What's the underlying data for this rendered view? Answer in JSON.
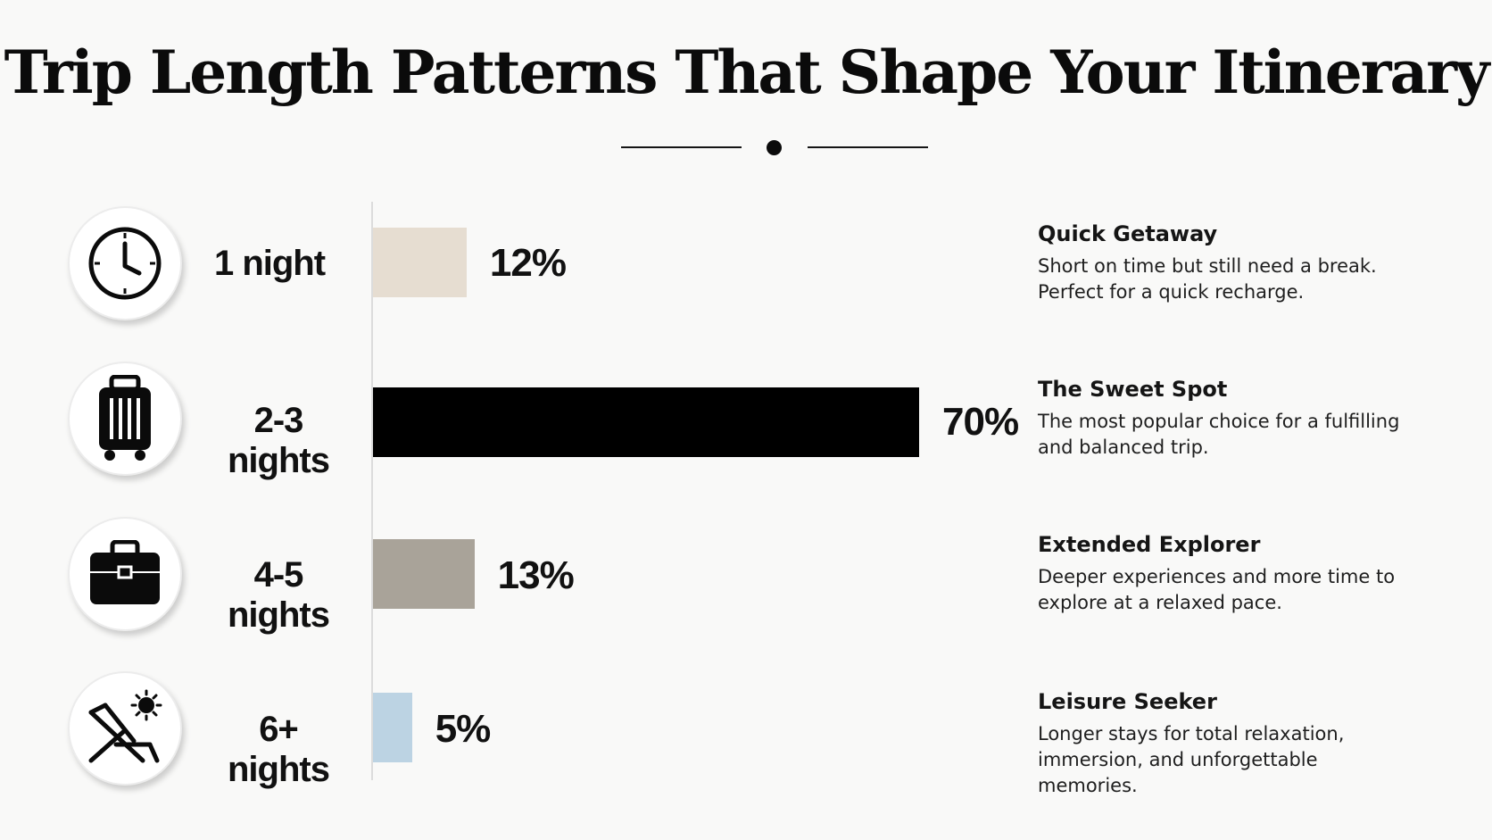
{
  "title": "Trip Length Patterns That Shape Your Itinerary",
  "chart_data": {
    "type": "bar",
    "orientation": "horizontal",
    "title": "Trip Length Patterns That Shape Your Itinerary",
    "categories": [
      "1 night",
      "2-3 nights",
      "4-5 nights",
      "6+ nights"
    ],
    "values": [
      12,
      70,
      13,
      5
    ],
    "value_labels": [
      "12%",
      "70%",
      "13%",
      "5%"
    ],
    "colors": [
      "#e6ddd1",
      "#000000",
      "#a9a399",
      "#bcd3e3"
    ],
    "icons": [
      "clock-icon",
      "luggage-icon",
      "briefcase-icon",
      "beach-chair-icon"
    ],
    "xlim": [
      0,
      70
    ],
    "grid": false
  },
  "descriptions": [
    {
      "title": "Quick Getaway",
      "text": "Short on time but still need a break. Perfect for a quick recharge."
    },
    {
      "title": "The Sweet Spot",
      "text": "The most popular choice for a fulfilling and balanced trip."
    },
    {
      "title": "Extended Explorer",
      "text": "Deeper experiences and more time to explore at a relaxed pace."
    },
    {
      "title": "Leisure Seeker",
      "text": "Longer stays for total relaxation, immersion, and unforgettable memories."
    }
  ]
}
